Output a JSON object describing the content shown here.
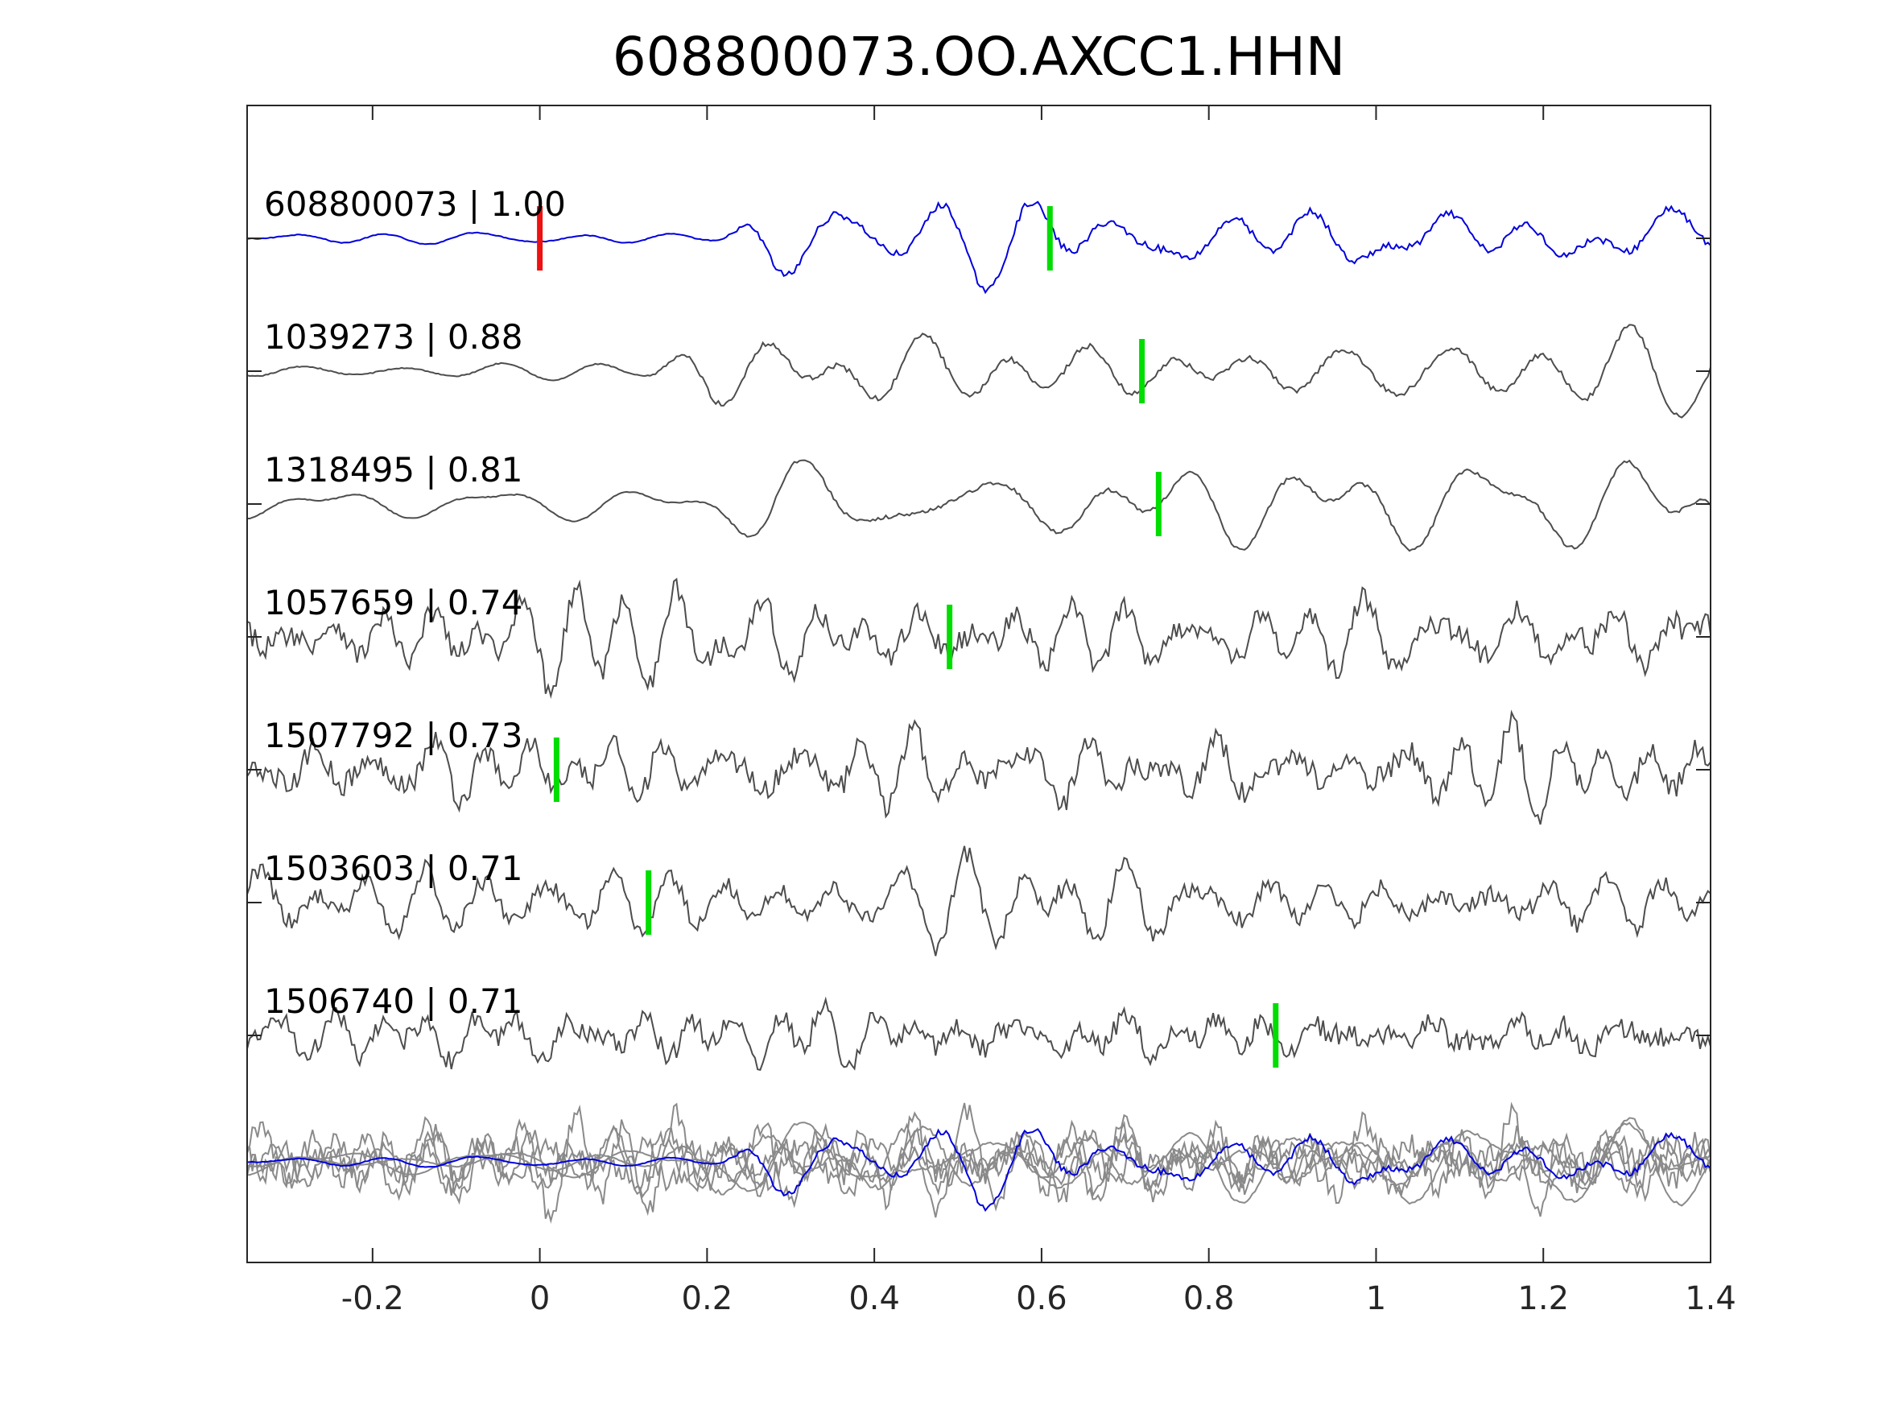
{
  "chart_data": {
    "type": "line",
    "title": "608800073.OO.AXCC1.HHN",
    "xlabel": "",
    "ylabel": "",
    "xlim": [
      -0.35,
      1.4
    ],
    "xticks": [
      -0.2,
      0,
      0.2,
      0.4,
      0.6,
      0.8,
      1,
      1.2,
      1.4
    ],
    "xtick_labels": [
      "-0.2",
      "0",
      "0.2",
      "0.4",
      "0.6",
      "0.8",
      "1",
      "1.2",
      "1.4"
    ],
    "grid": false,
    "legend": "none",
    "colors": {
      "reference": "#0000dd",
      "match": "#4d4d4d",
      "stack": "#8a8a8a",
      "origin_pick": "#ee1111",
      "arrival_pick": "#00dd00",
      "axis": "#262626"
    },
    "series": [
      {
        "id": "608800073",
        "label": "608800073 | 1.00",
        "correlation": 1.0,
        "pick_time": 0.61,
        "origin_time": 0.0,
        "role": "reference"
      },
      {
        "id": "1039273",
        "label": "1039273 | 0.88",
        "correlation": 0.88,
        "pick_time": 0.72,
        "role": "match"
      },
      {
        "id": "1318495",
        "label": "1318495 | 0.81",
        "correlation": 0.81,
        "pick_time": 0.74,
        "role": "match"
      },
      {
        "id": "1057659",
        "label": "1057659 | 0.74",
        "correlation": 0.74,
        "pick_time": 0.49,
        "role": "match"
      },
      {
        "id": "1507792",
        "label": "1507792 | 0.73",
        "correlation": 0.73,
        "pick_time": 0.02,
        "role": "match"
      },
      {
        "id": "1503603",
        "label": "1503603 | 0.71",
        "correlation": 0.71,
        "pick_time": 0.13,
        "role": "match"
      },
      {
        "id": "1506740",
        "label": "1506740 | 0.71",
        "correlation": 0.71,
        "pick_time": 0.88,
        "role": "match"
      }
    ]
  }
}
